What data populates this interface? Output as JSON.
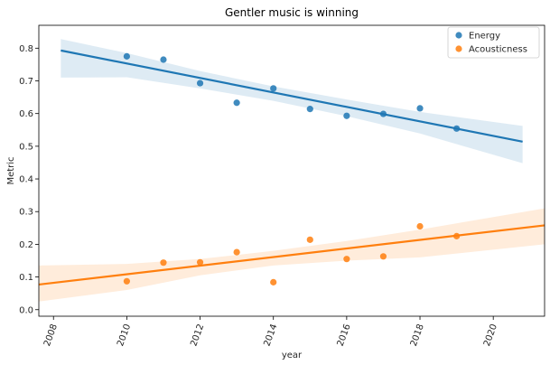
{
  "chart_data": {
    "type": "scatter",
    "title": "Gentler music is winning",
    "xlabel": "year",
    "ylabel": "Metric",
    "xlim": [
      2007.6,
      2021.4
    ],
    "ylim": [
      -0.02,
      0.87
    ],
    "xticks": [
      2008,
      2010,
      2012,
      2014,
      2016,
      2018,
      2020
    ],
    "yticks": [
      0.0,
      0.1,
      0.2,
      0.3,
      0.4,
      0.5,
      0.6,
      0.7,
      0.8
    ],
    "grid": false,
    "legend": "top-right",
    "series": [
      {
        "name": "Energy",
        "color": "#1f77b4",
        "x": [
          2010,
          2011,
          2012,
          2013,
          2014,
          2015,
          2016,
          2017,
          2018,
          2019
        ],
        "y": [
          0.775,
          0.765,
          0.693,
          0.633,
          0.677,
          0.614,
          0.593,
          0.599,
          0.616,
          0.554
        ],
        "fit": {
          "x": [
            2008.2,
            2020.8
          ],
          "y": [
            0.793,
            0.514
          ]
        },
        "ci": {
          "x": [
            2008.2,
            2010,
            2012,
            2014,
            2016,
            2018,
            2020.8
          ],
          "upper": [
            0.828,
            0.785,
            0.73,
            0.683,
            0.643,
            0.605,
            0.562
          ],
          "lower": [
            0.71,
            0.711,
            0.677,
            0.639,
            0.592,
            0.539,
            0.448
          ]
        }
      },
      {
        "name": "Acousticness",
        "color": "#ff7f0e",
        "x": [
          2010,
          2011,
          2012,
          2013,
          2014,
          2015,
          2016,
          2017,
          2018,
          2019
        ],
        "y": [
          0.087,
          0.144,
          0.145,
          0.176,
          0.084,
          0.214,
          0.155,
          0.163,
          0.255,
          0.225
        ],
        "fit": {
          "x": [
            2007.6,
            2021.4
          ],
          "y": [
            0.077,
            0.258
          ]
        },
        "ci": {
          "x": [
            2007.6,
            2010,
            2012,
            2014,
            2016,
            2018,
            2021.4
          ],
          "upper": [
            0.135,
            0.14,
            0.155,
            0.18,
            0.21,
            0.245,
            0.31
          ],
          "lower": [
            0.025,
            0.06,
            0.105,
            0.135,
            0.15,
            0.16,
            0.2
          ]
        }
      }
    ]
  }
}
